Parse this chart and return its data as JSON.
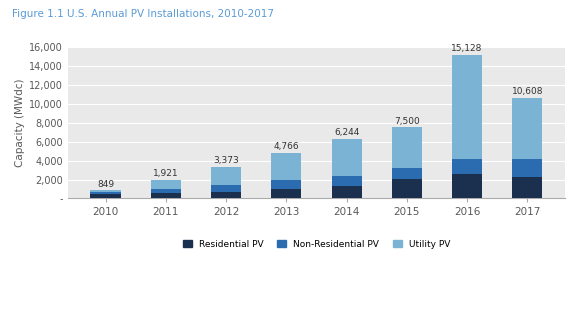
{
  "title": "Figure 1.1 U.S. Annual PV Installations, 2010-2017",
  "ylabel": "Capacity (MWdc)",
  "years": [
    "2010",
    "2011",
    "2012",
    "2013",
    "2014",
    "2015",
    "2016",
    "2017"
  ],
  "totals": [
    849,
    1921,
    3373,
    4766,
    6244,
    7500,
    15128,
    10608
  ],
  "residential": [
    430,
    590,
    720,
    950,
    1350,
    2050,
    2600,
    2300
  ],
  "non_residential": [
    220,
    420,
    700,
    950,
    1050,
    1150,
    1550,
    1900
  ],
  "utility": [
    199,
    911,
    1953,
    2866,
    3844,
    4300,
    10978,
    6408
  ],
  "color_residential": "#1b2f4e",
  "color_non_residential": "#2b6cb0",
  "color_utility": "#7ab3d4",
  "ylim": [
    0,
    16000
  ],
  "yticks": [
    0,
    2000,
    4000,
    6000,
    8000,
    10000,
    12000,
    14000,
    16000
  ],
  "ytick_labels": [
    "-",
    "2,000",
    "4,000",
    "6,000",
    "8,000",
    "10,000",
    "12,000",
    "14,000",
    "16,000"
  ],
  "legend_labels": [
    "Residential PV",
    "Non-Residential PV",
    "Utility PV"
  ],
  "title_color": "#5b9bd5",
  "axis_label_color": "#595959",
  "tick_label_color": "#595959",
  "bg_fig": "#ffffff",
  "bg_ax": "#e9e9e9",
  "bar_width": 0.5
}
